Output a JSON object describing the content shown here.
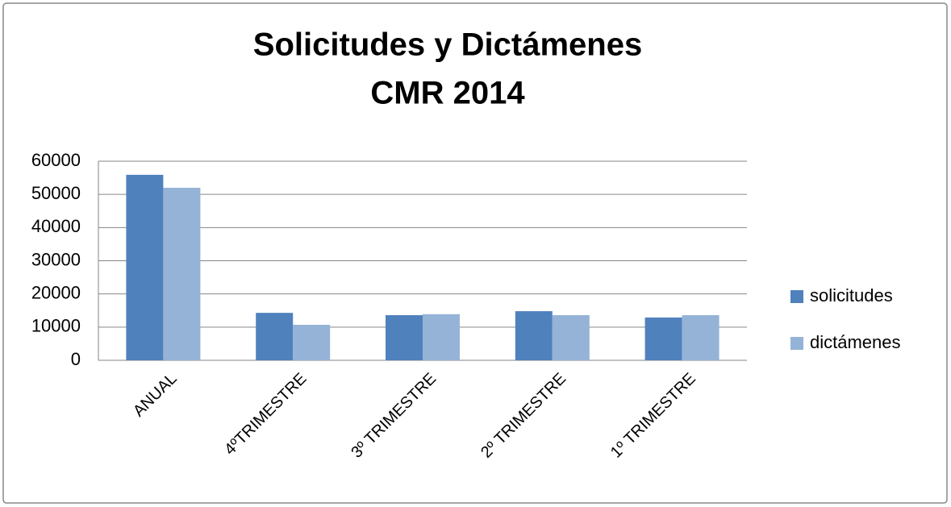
{
  "chart_data": {
    "type": "bar",
    "title": [
      "Solicitudes y Dictámenes",
      "CMR 2014"
    ],
    "categories": [
      "ANUAL",
      "4ºTRIMESTRE",
      "3º TRIMESTRE",
      "2º TRIMESTRE",
      "1º TRIMESTRE"
    ],
    "series": [
      {
        "name": "solicitudes",
        "color": "#4f81bd",
        "values": [
          55900,
          14300,
          13600,
          14800,
          12900
        ]
      },
      {
        "name": "dictámenes",
        "color": "#95b3d7",
        "values": [
          52000,
          10700,
          13900,
          13600,
          13600
        ]
      }
    ],
    "ylim": [
      0,
      60000
    ],
    "yticks": [
      0,
      10000,
      20000,
      30000,
      40000,
      50000,
      60000
    ],
    "grid": true,
    "legend": "right"
  }
}
